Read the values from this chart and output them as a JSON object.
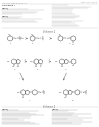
{
  "background_color": "#ffffff",
  "text_color": "#444444",
  "light_gray": "#999999",
  "dark_gray": "#666666",
  "header_left": "US 2013/0261099 A1",
  "header_right": "Oct. 03, 2013",
  "page_number": "2",
  "section_title": "Scheme 1",
  "structure_line_color": "#555555",
  "arrow_color": "#777777",
  "line_color": "#aaaaaa"
}
